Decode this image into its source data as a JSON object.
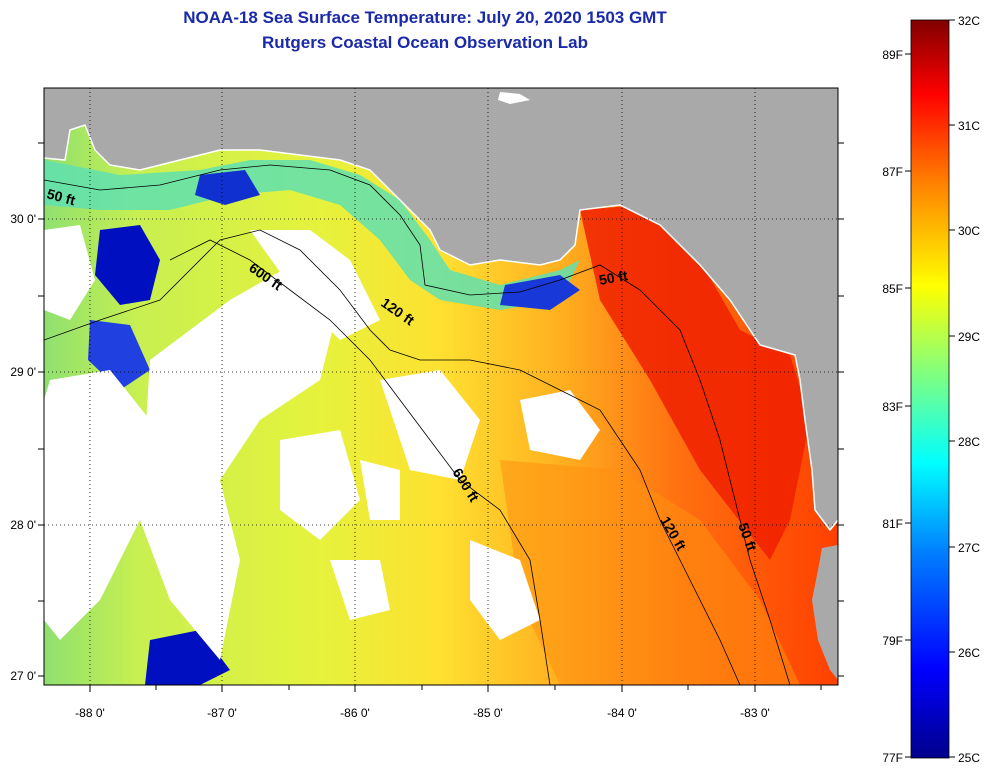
{
  "header": {
    "title": "NOAA-18 Sea Surface Temperature:  July 20, 2020 1503 GMT",
    "subtitle": "Rutgers Coastal Ocean Observation Lab"
  },
  "map": {
    "lat_ticks": [
      "30 0'",
      "29 0'",
      "28 0'",
      "27 0'"
    ],
    "lon_ticks": [
      "-88 0'",
      "-87 0'",
      "-86 0'",
      "-85 0'",
      "-84 0'",
      "-83 0'"
    ],
    "contour_labels": [
      "50 ft",
      "600 ft",
      "120 ft",
      "50 ft",
      "600 ft",
      "120 ft",
      "50 ft"
    ],
    "colors": {
      "land": "#a9a9a9",
      "cloud": "#ffffff",
      "contour": "#000000",
      "graticule": "#000000"
    }
  },
  "colorbar": {
    "celsius_labels": [
      "32C",
      "31C",
      "30C",
      "29C",
      "28C",
      "27C",
      "26C",
      "25C"
    ],
    "fahrenheit_labels": [
      "89F",
      "87F",
      "85F",
      "83F",
      "81F",
      "79F",
      "77F"
    ],
    "colors": [
      "#00008b",
      "#0000ff",
      "#0080ff",
      "#00ffff",
      "#80ff80",
      "#ffff00",
      "#ff8000",
      "#ff0000",
      "#800000"
    ]
  }
}
